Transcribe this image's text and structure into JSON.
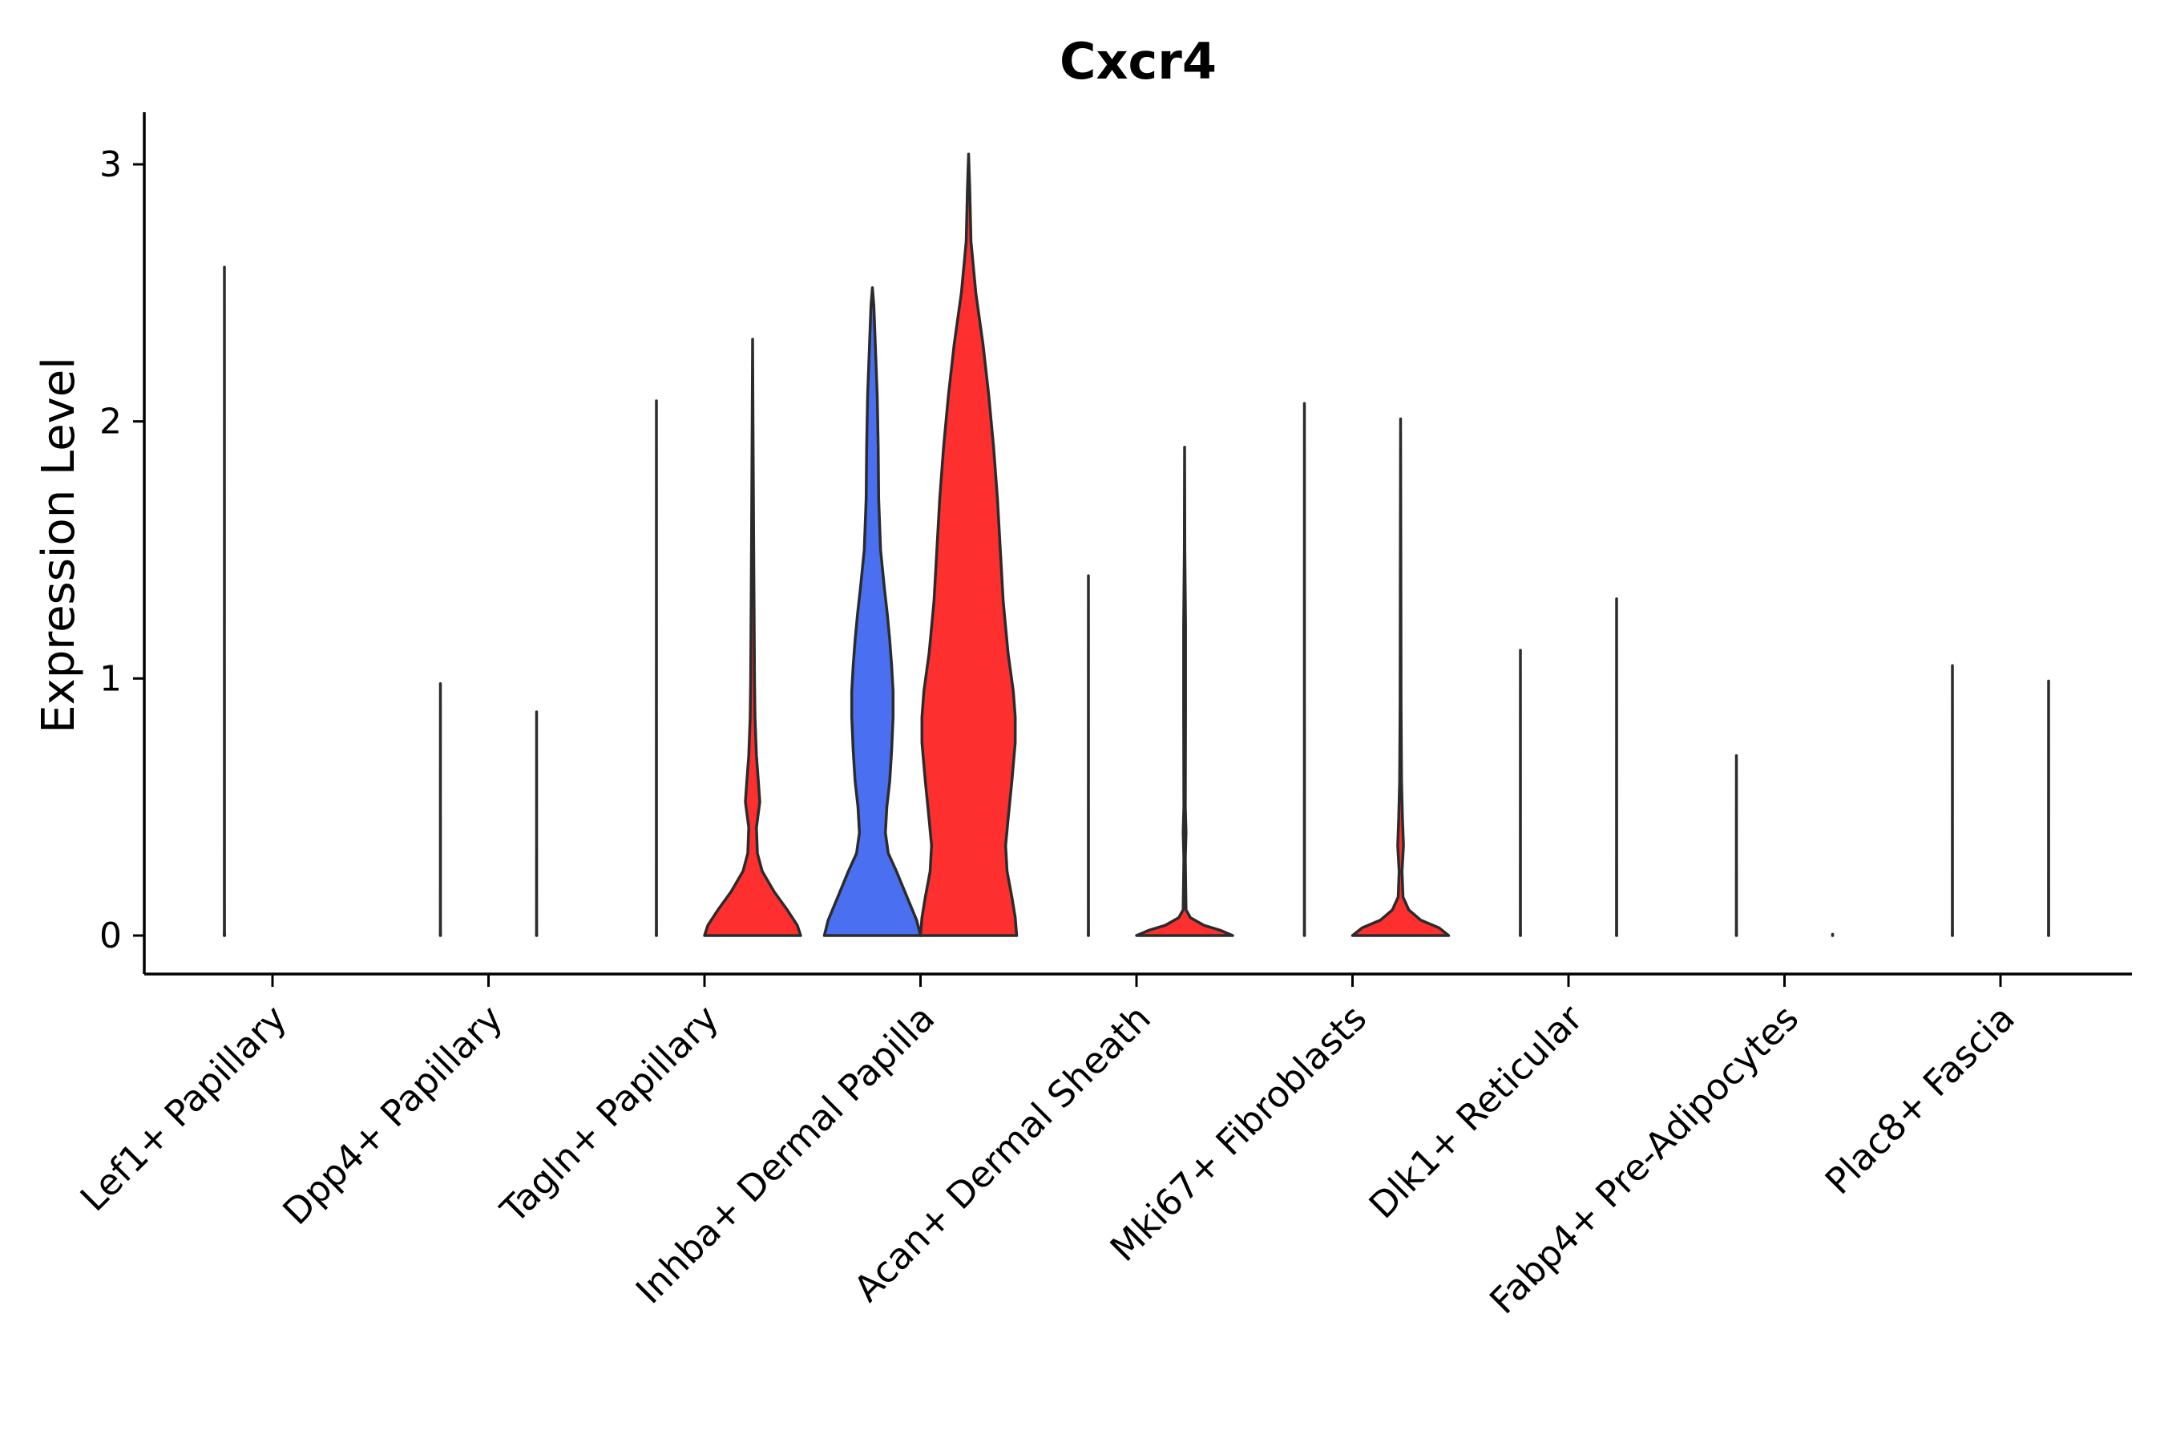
{
  "chart_data": {
    "type": "violin",
    "title": "Cxcr4",
    "xlabel": "",
    "ylabel": "Expression Level",
    "ylim": [
      -0.15,
      3.2
    ],
    "yticks": [
      0,
      1,
      2,
      3
    ],
    "colors": {
      "group_a": "#4a6ff0",
      "group_b": "#fd2f2f",
      "outline": "#2b2b2b"
    },
    "legend": "none",
    "categories": [
      "Lef1+ Papillary",
      "Dpp4+ Papillary",
      "Tagln+ Papillary",
      "Inhba+ Dermal Papilla",
      "Acan+ Dermal Sheath",
      "Mki67+ Fibroblasts",
      "Dlk1+ Reticular",
      "Fabp4+ Pre-Adipocytes",
      "Plac8+ Fascia"
    ],
    "series": [
      {
        "name": "group_a",
        "color": "#4a6ff0",
        "violins": [
          {
            "category": "Lef1+ Papillary",
            "max": 2.6,
            "profile": [
              [
                0,
                0.005
              ],
              [
                0.02,
                0.001
              ],
              [
                2.6,
                0
              ]
            ]
          },
          {
            "category": "Dpp4+ Papillary",
            "max": 0.98,
            "profile": [
              [
                0,
                0.003
              ],
              [
                0.02,
                0.001
              ],
              [
                0.98,
                0
              ]
            ]
          },
          {
            "category": "Tagln+ Papillary",
            "max": 2.08,
            "profile": [
              [
                0,
                0.003
              ],
              [
                0.02,
                0.001
              ],
              [
                2.08,
                0
              ]
            ]
          },
          {
            "category": "Inhba+ Dermal Papilla",
            "max": 2.52,
            "profile": [
              [
                0,
                1.0
              ],
              [
                0.06,
                0.92
              ],
              [
                0.15,
                0.72
              ],
              [
                0.25,
                0.5
              ],
              [
                0.32,
                0.33
              ],
              [
                0.4,
                0.27
              ],
              [
                0.5,
                0.3
              ],
              [
                0.6,
                0.36
              ],
              [
                0.72,
                0.4
              ],
              [
                0.85,
                0.43
              ],
              [
                0.95,
                0.43
              ],
              [
                1.05,
                0.4
              ],
              [
                1.15,
                0.36
              ],
              [
                1.25,
                0.31
              ],
              [
                1.35,
                0.25
              ],
              [
                1.5,
                0.17
              ],
              [
                1.7,
                0.13
              ],
              [
                1.9,
                0.12
              ],
              [
                2.1,
                0.1
              ],
              [
                2.3,
                0.06
              ],
              [
                2.45,
                0.03
              ],
              [
                2.52,
                0
              ]
            ]
          },
          {
            "category": "Acan+ Dermal Sheath",
            "max": 1.4,
            "profile": [
              [
                0,
                0.003
              ],
              [
                0.02,
                0.001
              ],
              [
                1.4,
                0
              ]
            ]
          },
          {
            "category": "Mki67+ Fibroblasts",
            "max": 2.07,
            "profile": [
              [
                0,
                0.004
              ],
              [
                0.02,
                0.001
              ],
              [
                2.07,
                0
              ]
            ]
          },
          {
            "category": "Dlk1+ Reticular",
            "max": 1.11,
            "profile": [
              [
                0,
                0.003
              ],
              [
                0.02,
                0.001
              ],
              [
                1.11,
                0
              ]
            ]
          },
          {
            "category": "Fabp4+ Pre-Adipocytes",
            "max": 0.7,
            "profile": [
              [
                0,
                0.003
              ],
              [
                0.02,
                0.001
              ],
              [
                0.7,
                0
              ]
            ]
          },
          {
            "category": "Plac8+ Fascia",
            "max": 1.05,
            "profile": [
              [
                0,
                0.003
              ],
              [
                0.02,
                0.001
              ],
              [
                1.05,
                0
              ]
            ]
          }
        ]
      },
      {
        "name": "group_b",
        "color": "#fd2f2f",
        "violins": [
          {
            "category": "Lef1+ Papillary",
            "max": 0,
            "profile": []
          },
          {
            "category": "Dpp4+ Papillary",
            "max": 0.87,
            "profile": [
              [
                0,
                0.003
              ],
              [
                0.02,
                0.001
              ],
              [
                0.87,
                0
              ]
            ]
          },
          {
            "category": "Tagln+ Papillary",
            "max": 2.32,
            "profile": [
              [
                0,
                1.0
              ],
              [
                0.04,
                0.93
              ],
              [
                0.1,
                0.72
              ],
              [
                0.17,
                0.45
              ],
              [
                0.25,
                0.2
              ],
              [
                0.32,
                0.1
              ],
              [
                0.42,
                0.08
              ],
              [
                0.52,
                0.15
              ],
              [
                0.6,
                0.12
              ],
              [
                0.7,
                0.08
              ],
              [
                0.85,
                0.05
              ],
              [
                1.0,
                0.04
              ],
              [
                1.3,
                0.03
              ],
              [
                1.6,
                0.02
              ],
              [
                2.0,
                0.008
              ],
              [
                2.32,
                0
              ]
            ]
          },
          {
            "category": "Inhba+ Dermal Papilla",
            "max": 3.04,
            "profile": [
              [
                0,
                1.0
              ],
              [
                0.07,
                0.97
              ],
              [
                0.15,
                0.9
              ],
              [
                0.25,
                0.8
              ],
              [
                0.35,
                0.77
              ],
              [
                0.45,
                0.82
              ],
              [
                0.6,
                0.9
              ],
              [
                0.75,
                0.97
              ],
              [
                0.85,
                0.97
              ],
              [
                0.95,
                0.93
              ],
              [
                1.1,
                0.82
              ],
              [
                1.3,
                0.72
              ],
              [
                1.5,
                0.66
              ],
              [
                1.7,
                0.6
              ],
              [
                1.9,
                0.52
              ],
              [
                2.1,
                0.42
              ],
              [
                2.3,
                0.3
              ],
              [
                2.5,
                0.15
              ],
              [
                2.7,
                0.05
              ],
              [
                2.9,
                0.025
              ],
              [
                3.04,
                0
              ]
            ]
          },
          {
            "category": "Acan+ Dermal Sheath",
            "max": 1.9,
            "profile": [
              [
                0,
                1.0
              ],
              [
                0.02,
                0.75
              ],
              [
                0.04,
                0.4
              ],
              [
                0.07,
                0.12
              ],
              [
                0.1,
                0.03
              ],
              [
                0.3,
                0.015
              ],
              [
                0.4,
                0.03
              ],
              [
                0.5,
                0.015
              ],
              [
                0.9,
                0.02
              ],
              [
                1.2,
                0.02
              ],
              [
                1.5,
                0.005
              ],
              [
                1.9,
                0
              ]
            ]
          },
          {
            "category": "Mki67+ Fibroblasts",
            "max": 2.01,
            "profile": [
              [
                0,
                1.0
              ],
              [
                0.03,
                0.8
              ],
              [
                0.06,
                0.42
              ],
              [
                0.1,
                0.17
              ],
              [
                0.15,
                0.05
              ],
              [
                0.25,
                0.03
              ],
              [
                0.35,
                0.06
              ],
              [
                0.45,
                0.04
              ],
              [
                0.6,
                0.02
              ],
              [
                0.9,
                0.01
              ],
              [
                1.5,
                0.005
              ],
              [
                2.01,
                0
              ]
            ]
          },
          {
            "category": "Dlk1+ Reticular",
            "max": 1.31,
            "profile": [
              [
                0,
                0.003
              ],
              [
                0.02,
                0.001
              ],
              [
                1.31,
                0
              ]
            ]
          },
          {
            "category": "Fabp4+ Pre-Adipocytes",
            "max": 0,
            "profile": [
              [
                0,
                0.002
              ],
              [
                0.005,
                0
              ]
            ]
          },
          {
            "category": "Plac8+ Fascia",
            "max": 0.99,
            "profile": [
              [
                0,
                0.003
              ],
              [
                0.02,
                0.001
              ],
              [
                0.99,
                0
              ]
            ]
          }
        ]
      }
    ]
  }
}
